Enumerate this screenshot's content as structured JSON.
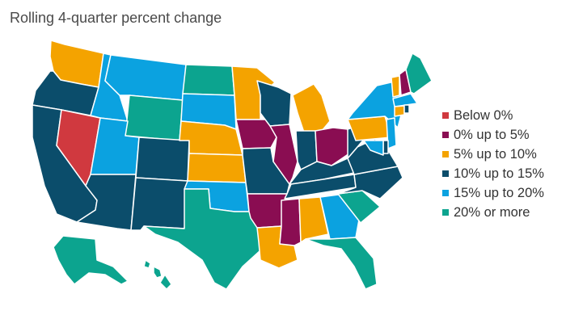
{
  "title": "Rolling 4-quarter percent change",
  "colors": {
    "below0": "#d0393f",
    "b0to5": "#8a0d52",
    "b5to10": "#f4a300",
    "b10to15": "#0b4d6b",
    "b15to20": "#0ba2e0",
    "b20plus": "#0ca48f"
  },
  "legend": [
    {
      "key": "below0",
      "label": "Below 0%"
    },
    {
      "key": "b0to5",
      "label": "0% up to 5%"
    },
    {
      "key": "b5to10",
      "label": "5% up to 10%"
    },
    {
      "key": "b10to15",
      "label": "10% up to 15%"
    },
    {
      "key": "b15to20",
      "label": "15% up to 20%"
    },
    {
      "key": "b20plus",
      "label": "20% or more"
    }
  ],
  "states": {
    "WA": "b5to10",
    "OR": "b10to15",
    "CA": "b10to15",
    "NV": "below0",
    "ID": "b15to20",
    "MT": "b15to20",
    "WY": "b20plus",
    "UT": "b15to20",
    "AZ": "b10to15",
    "CO": "b10to15",
    "NM": "b10to15",
    "ND": "b20plus",
    "SD": "b15to20",
    "NE": "b5to10",
    "KS": "b5to10",
    "OK": "b15to20",
    "TX": "b20plus",
    "MN": "b5to10",
    "IA": "b0to5",
    "MO": "b10to15",
    "AR": "b0to5",
    "LA": "b5to10",
    "WI": "b10to15",
    "IL": "b0to5",
    "MI": "b5to10",
    "IN": "b10to15",
    "OH": "b0to5",
    "KY": "b10to15",
    "TN": "b10to15",
    "MS": "b0to5",
    "AL": "b5to10",
    "GA": "b15to20",
    "FL": "b20plus",
    "SC": "b20plus",
    "NC": "b10to15",
    "VA": "b10to15",
    "WV": "b10to15",
    "PA": "b5to10",
    "NY": "b15to20",
    "VT": "b5to10",
    "NH": "b0to5",
    "ME": "b20plus",
    "MA": "b15to20",
    "CT": "b5to10",
    "RI": "b10to15",
    "NJ": "b15to20",
    "DE": "b10to15",
    "MD": "b15to20",
    "AK": "b20plus",
    "HI": "b20plus"
  }
}
